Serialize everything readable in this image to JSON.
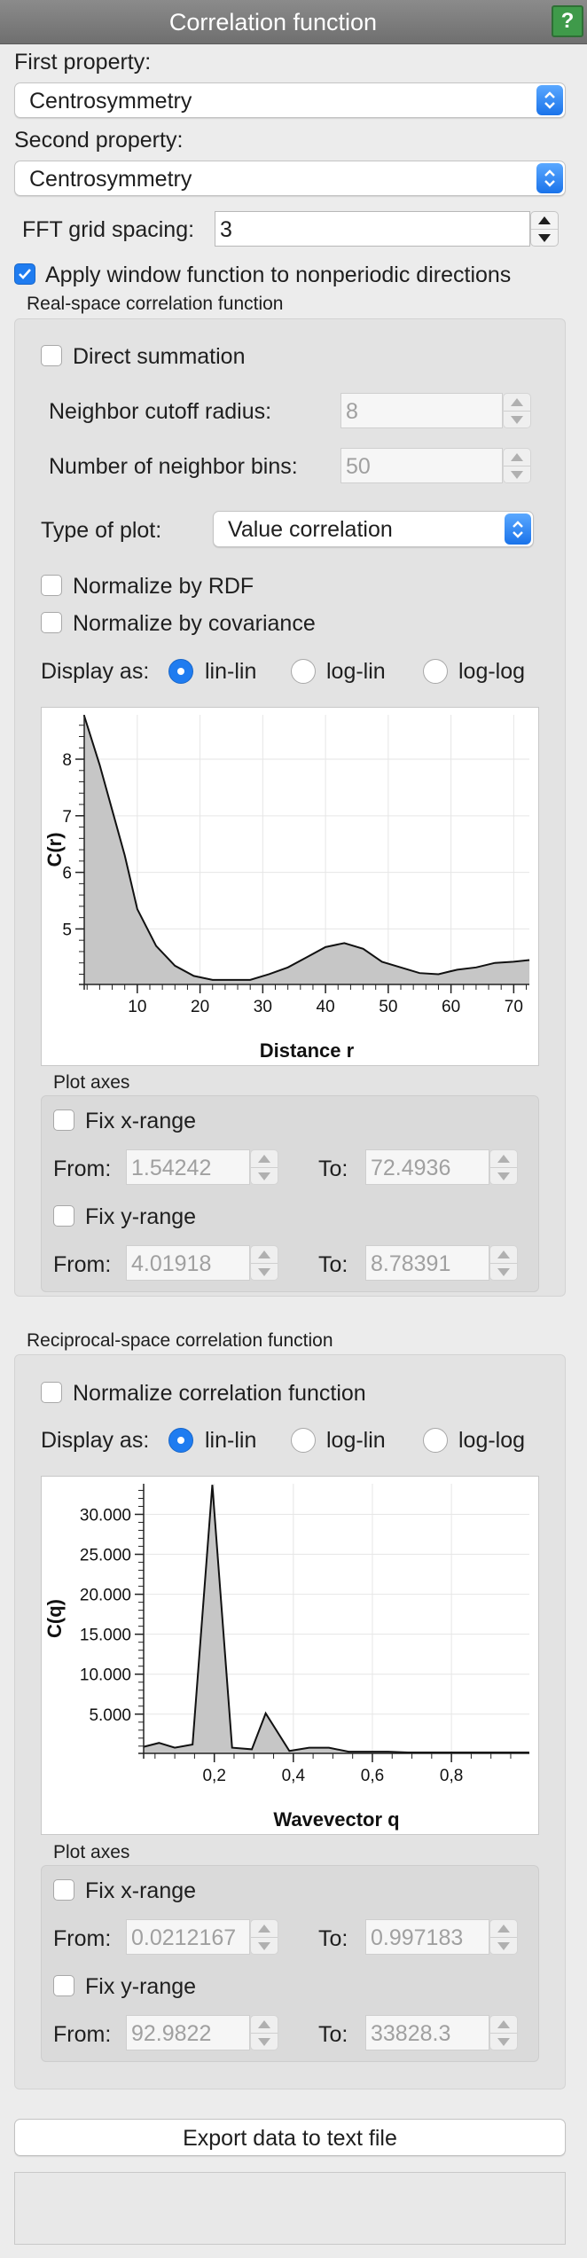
{
  "window": {
    "title": "Correlation function",
    "help_label": "?"
  },
  "first_property": {
    "label": "First property:",
    "value": "Centrosymmetry"
  },
  "second_property": {
    "label": "Second property:",
    "value": "Centrosymmetry"
  },
  "fft": {
    "label": "FFT grid spacing:",
    "value": "3"
  },
  "apply_window": {
    "label": "Apply window function to nonperiodic directions",
    "checked": true
  },
  "real_space": {
    "title": "Real-space correlation function",
    "direct_summation": {
      "label": "Direct summation",
      "checked": false
    },
    "cutoff": {
      "label": "Neighbor cutoff radius:",
      "value": "8"
    },
    "bins": {
      "label": "Number of neighbor bins:",
      "value": "50"
    },
    "plot_type": {
      "label": "Type of plot:",
      "value": "Value correlation"
    },
    "normalize_rdf": {
      "label": "Normalize by RDF",
      "checked": false
    },
    "normalize_cov": {
      "label": "Normalize by covariance",
      "checked": false
    },
    "display": {
      "label": "Display as:",
      "options": [
        "lin-lin",
        "log-lin",
        "log-log"
      ],
      "selected": "lin-lin"
    },
    "axes": {
      "title": "Plot axes",
      "fix_x": "Fix x-range",
      "fix_y": "Fix y-range",
      "from_label": "From:",
      "to_label": "To:",
      "x_from": "1.54242",
      "x_to": "72.4936",
      "y_from": "4.01918",
      "y_to": "8.78391"
    }
  },
  "reciprocal_space": {
    "title": "Reciprocal-space correlation function",
    "normalize": {
      "label": "Normalize correlation function",
      "checked": false
    },
    "display": {
      "label": "Display as:",
      "options": [
        "lin-lin",
        "log-lin",
        "log-log"
      ],
      "selected": "lin-lin"
    },
    "axes": {
      "title": "Plot axes",
      "fix_x": "Fix x-range",
      "fix_y": "Fix y-range",
      "from_label": "From:",
      "to_label": "To:",
      "x_from": "0.0212167",
      "x_to": "0.997183",
      "y_from": "92.9822",
      "y_to": "33828.3"
    }
  },
  "export_button": "Export data to text file",
  "colors": {
    "accent": "#1f7cf0",
    "help": "#3f9a4a",
    "plot_fill": "#c6c6c6"
  },
  "chart_data": [
    {
      "type": "area",
      "xlabel": "Distance r",
      "ylabel": "C(r)",
      "xlim": [
        1.54242,
        72.4936
      ],
      "ylim": [
        4.01918,
        8.78391
      ],
      "xticks": [
        10,
        20,
        30,
        40,
        50,
        60,
        70
      ],
      "yticks": [
        5,
        6,
        7,
        8
      ],
      "x": [
        1.5,
        4,
        6,
        8,
        10,
        13,
        16,
        19,
        22,
        25,
        28,
        31,
        34,
        37,
        40,
        43,
        46,
        49,
        52,
        55,
        58,
        61,
        64,
        67,
        70,
        72.5
      ],
      "y": [
        8.78,
        7.9,
        7.1,
        6.3,
        5.35,
        4.7,
        4.35,
        4.17,
        4.1,
        4.1,
        4.1,
        4.2,
        4.32,
        4.5,
        4.68,
        4.75,
        4.65,
        4.42,
        4.32,
        4.22,
        4.2,
        4.28,
        4.32,
        4.4,
        4.42,
        4.45
      ]
    },
    {
      "type": "area",
      "xlabel": "Wavevector q",
      "ylabel": "C(q)",
      "xlim": [
        0.0212167,
        0.997183
      ],
      "ylim": [
        92.9822,
        33828.3
      ],
      "xticks": [
        "0,2",
        "0,4",
        "0,6",
        "0,8"
      ],
      "yticks": [
        "5.000",
        "10.000",
        "15.000",
        "20.000",
        "25.000",
        "30.000"
      ],
      "x": [
        0.02,
        0.06,
        0.1,
        0.145,
        0.195,
        0.245,
        0.295,
        0.33,
        0.39,
        0.44,
        0.49,
        0.54,
        0.59,
        0.64,
        0.69,
        0.74,
        0.79,
        0.84,
        0.89,
        0.94,
        0.997
      ],
      "y": [
        900,
        1400,
        800,
        1200,
        33700,
        800,
        600,
        5100,
        400,
        800,
        800,
        300,
        300,
        300,
        200,
        200,
        200,
        200,
        200,
        200,
        200
      ]
    }
  ]
}
